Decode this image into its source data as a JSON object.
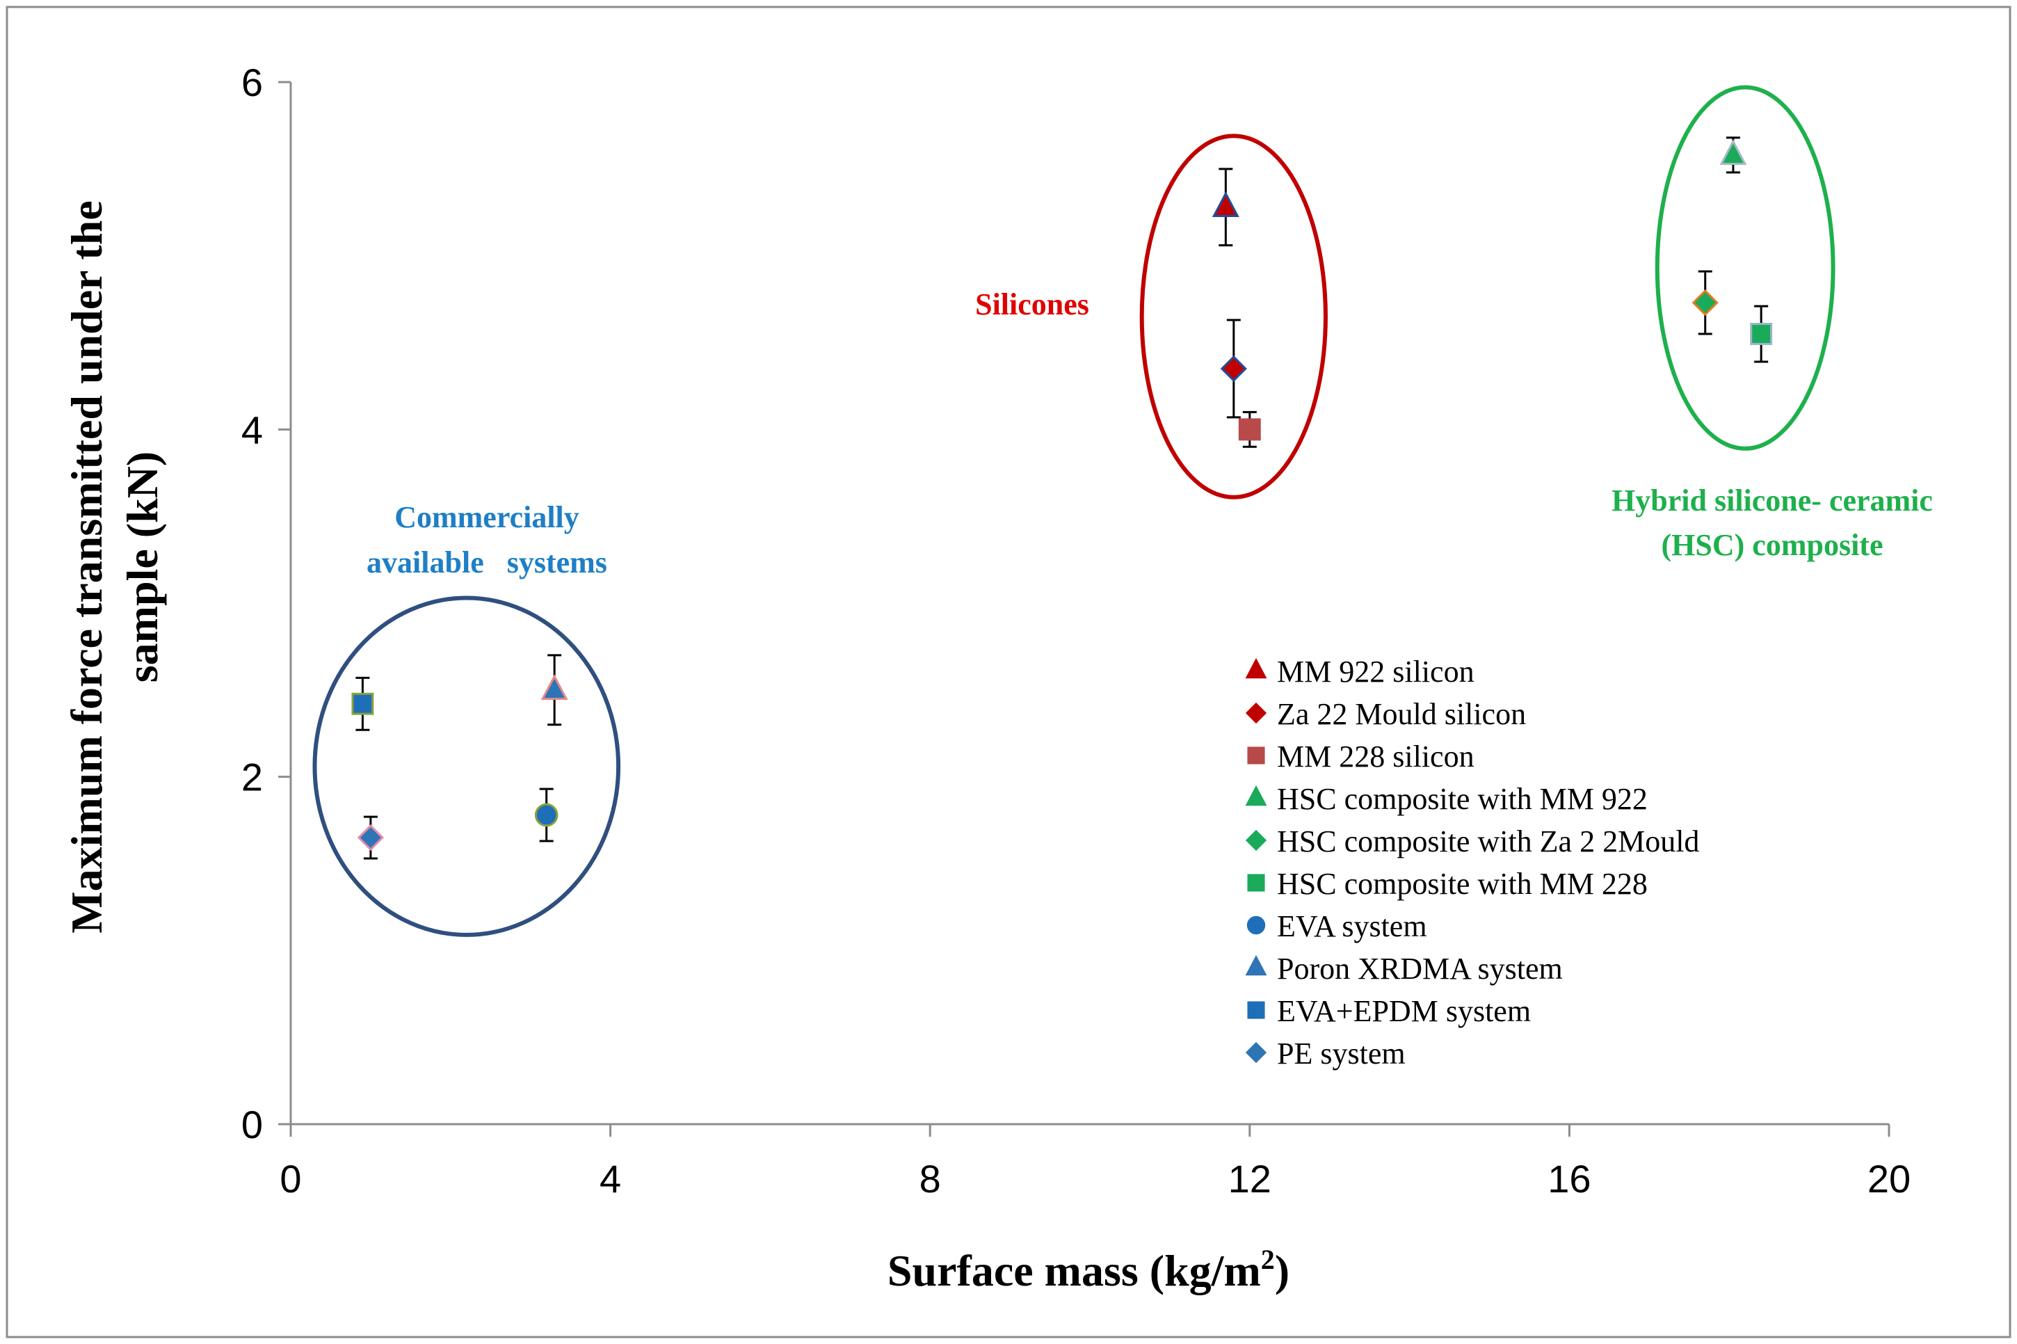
{
  "chart_data": {
    "type": "scatter",
    "title": "",
    "xlabel": "Surface mass (kg/m",
    "xlabel_sup": "2",
    "xlabel_close": ")",
    "ylabel_line1": "Maximum force transmitted under the",
    "ylabel_line2": "sample (kN)",
    "xlim": [
      0,
      20
    ],
    "ylim": [
      0,
      6
    ],
    "x_ticks": [
      0,
      4,
      8,
      12,
      16,
      20
    ],
    "y_ticks": [
      0,
      2,
      4,
      6
    ],
    "x_tick_labels": [
      "0",
      "4",
      "8",
      "12",
      "16",
      "20"
    ],
    "y_tick_labels": [
      "0",
      "2",
      "4",
      "6"
    ],
    "grid": false,
    "legend_position": "right",
    "series": [
      {
        "name": "MM 922 silicon",
        "marker": "triangle",
        "color": "#C00000",
        "edge": "#1F4E9A",
        "x": 11.7,
        "y": 5.28,
        "err": 0.22
      },
      {
        "name": "Za 22 Mould silicon",
        "marker": "diamond",
        "color": "#C00000",
        "edge": "#1F4E9A",
        "x": 11.8,
        "y": 4.35,
        "err": 0.28
      },
      {
        "name": "MM 228 silicon",
        "marker": "square",
        "color": "#B84A4A",
        "edge": "#B84A4A",
        "x": 12.0,
        "y": 4.0,
        "err": 0.1
      },
      {
        "name": "HSC composite with MM 922",
        "marker": "triangle",
        "color": "#1AAB5A",
        "edge": "#A8B8C8",
        "x": 18.05,
        "y": 5.58,
        "err": 0.1
      },
      {
        "name": "HSC composite with Za 2 2Mould",
        "marker": "diamond",
        "color": "#1AAB5A",
        "edge": "#E07A20",
        "x": 17.7,
        "y": 4.73,
        "err": 0.18
      },
      {
        "name": "HSC composite with MM 228",
        "marker": "square",
        "color": "#1AAB5A",
        "edge": "#9FB3C8",
        "x": 18.4,
        "y": 4.55,
        "err": 0.16
      },
      {
        "name": "EVA system",
        "marker": "circle",
        "color": "#1F6FB8",
        "edge": "#8AA23A",
        "x": 3.2,
        "y": 1.78,
        "err": 0.15
      },
      {
        "name": "Poron XRDMA system",
        "marker": "triangle",
        "color": "#2E75B6",
        "edge": "#E58A8A",
        "x": 3.3,
        "y": 2.5,
        "err": 0.2
      },
      {
        "name": "EVA+EPDM system",
        "marker": "square",
        "color": "#1F6FB8",
        "edge": "#8AA23A",
        "x": 0.9,
        "y": 2.42,
        "err": 0.15
      },
      {
        "name": "PE system",
        "marker": "diamond",
        "color": "#2E75B6",
        "edge": "#E58AA8",
        "x": 1.0,
        "y": 1.65,
        "err": 0.12
      }
    ],
    "annotations": [
      {
        "id": "silicones",
        "text": "Silicones",
        "color": "#E00000"
      },
      {
        "id": "commercial",
        "line1": "Commercially",
        "line2": "available   systems",
        "color": "#1E7FC6"
      },
      {
        "id": "hybrid",
        "line1": "Hybrid silicone- ceramic",
        "line2": "(HSC) composite",
        "color": "#1EB04C"
      }
    ],
    "group_ellipses": [
      {
        "name": "silicones-group",
        "cx": 11.8,
        "cy": 4.65,
        "rx": 1.15,
        "ry": 1.04,
        "color": "#C00000"
      },
      {
        "name": "hsc-group",
        "cx": 18.2,
        "cy": 4.93,
        "rx": 1.1,
        "ry": 1.04,
        "color": "#1EB04C"
      },
      {
        "name": "commercial-group",
        "cx": 2.2,
        "cy": 2.06,
        "rx": 1.9,
        "ry": 0.97,
        "color": "#2F4F7F"
      }
    ]
  }
}
